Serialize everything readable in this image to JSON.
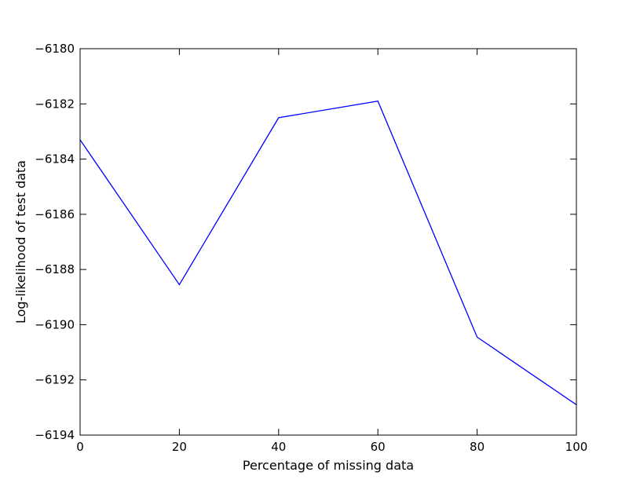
{
  "chart_data": {
    "type": "line",
    "xlabel": "Percentage of missing data",
    "ylabel": "Log-likelihood of test data",
    "xlim": [
      0,
      100
    ],
    "ylim": [
      -6194,
      -6180
    ],
    "x_ticks": [
      0,
      20,
      40,
      60,
      80,
      100
    ],
    "y_ticks": [
      -6194,
      -6192,
      -6190,
      -6188,
      -6186,
      -6184,
      -6182,
      -6180
    ],
    "x_tick_labels": [
      "0",
      "20",
      "40",
      "60",
      "80",
      "100"
    ],
    "y_tick_labels": [
      "−6194",
      "−6192",
      "−6190",
      "−6188",
      "−6186",
      "−6184",
      "−6182",
      "−6180"
    ],
    "grid": false,
    "legend": "none",
    "series": [
      {
        "color": "#0000ff",
        "x": [
          0,
          20,
          40,
          60,
          80,
          100
        ],
        "y": [
          -6183.3,
          -6188.55,
          -6182.5,
          -6181.9,
          -6190.45,
          -6192.9
        ]
      }
    ]
  }
}
